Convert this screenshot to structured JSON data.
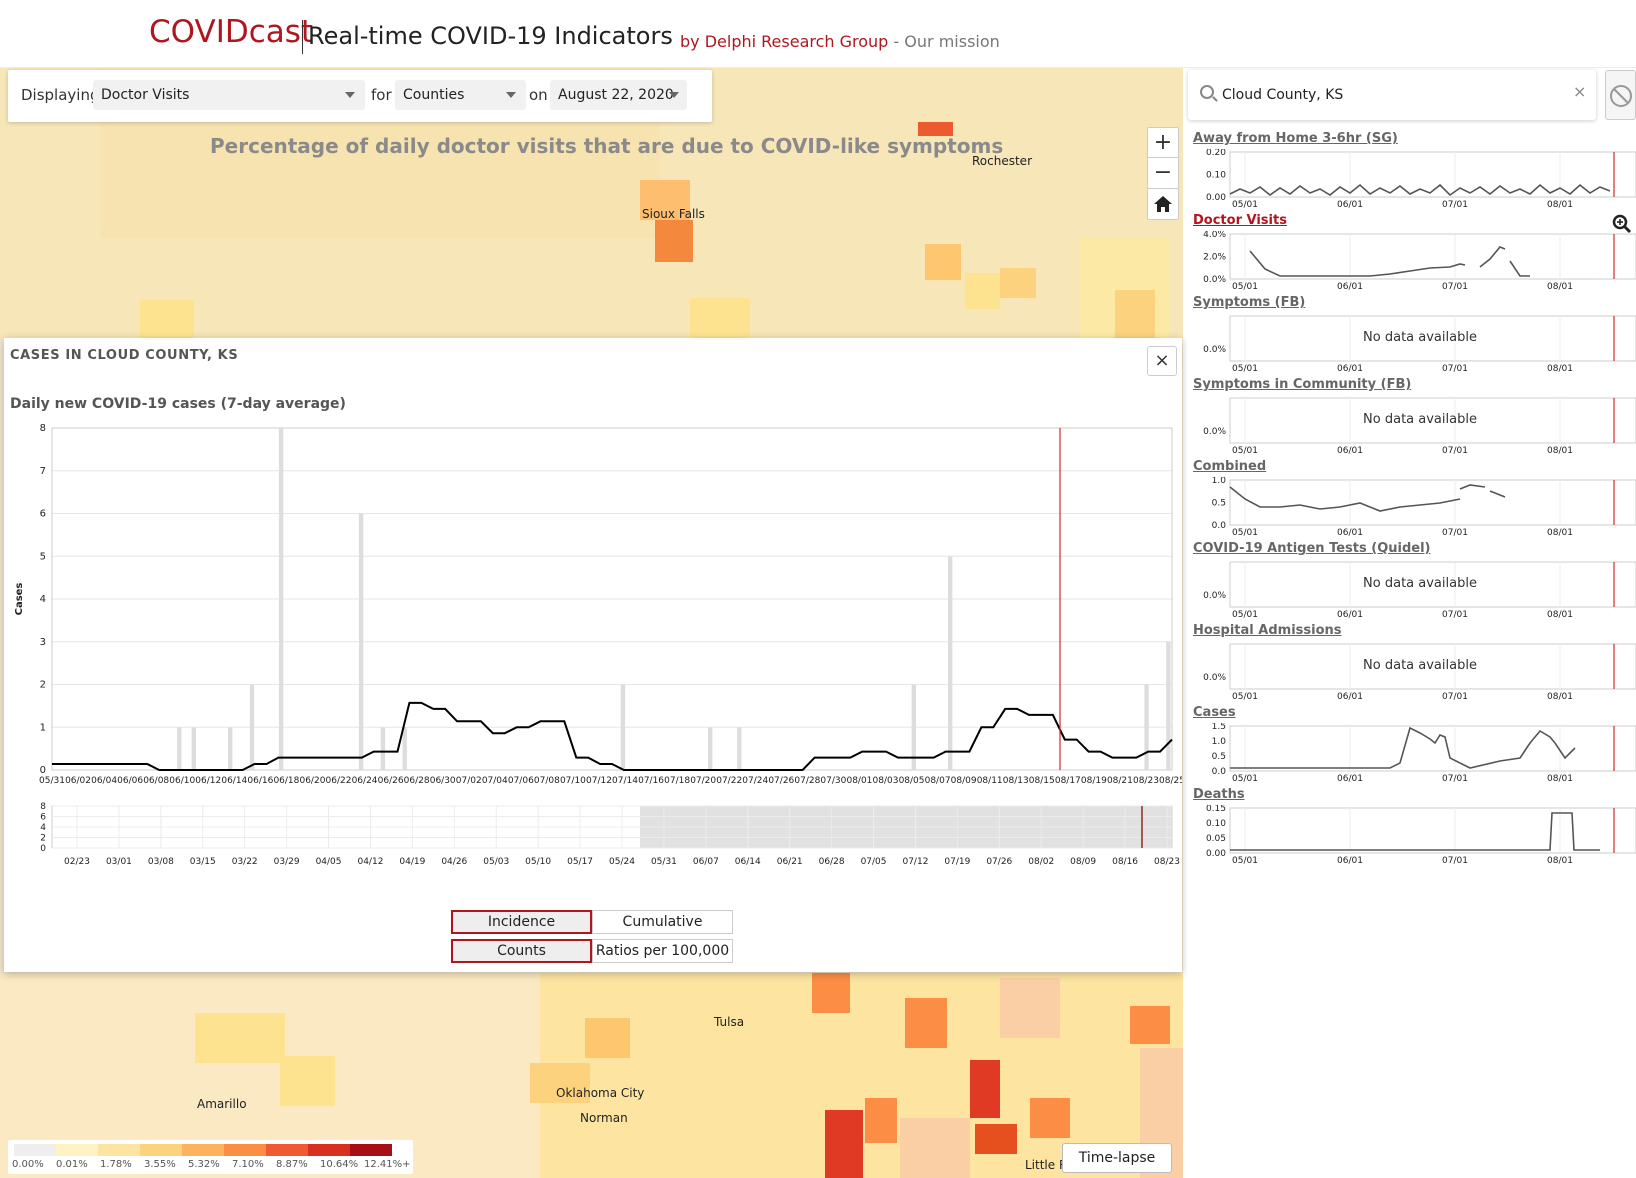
{
  "header": {
    "brand": "COVIDcast",
    "title": "Real-time COVID-19 Indicators",
    "byline_link": "by Delphi Research Group",
    "byline_sep": " - ",
    "mission_link": "Our mission"
  },
  "controls": {
    "displaying_label": "Displaying",
    "signal_value": "Doctor Visits",
    "for_label": "for",
    "level_value": "Counties",
    "on_label": "on",
    "date_value": "August 22, 2020"
  },
  "map": {
    "title": "Percentage of daily doctor visits that are due to COVID-like symptoms",
    "cities": [
      "Rochester",
      "Sioux Falls",
      "Tulsa",
      "Oklahoma City",
      "Norman",
      "Amarillo",
      "Little R"
    ],
    "legend_ticks": [
      "0.00%",
      "0.01%",
      "1.78%",
      "3.55%",
      "5.32%",
      "7.10%",
      "8.87%",
      "10.64%",
      "12.41%+"
    ],
    "legend_colors": [
      "#eeeeee",
      "#fff3c4",
      "#fde4a0",
      "#fdd27e",
      "#fdb35e",
      "#fc8d45",
      "#f05a32",
      "#d7301f",
      "#a50f15"
    ],
    "timelapse_label": "Time-lapse",
    "zoom_in": "+",
    "zoom_out": "−"
  },
  "panel": {
    "title": "CASES IN CLOUD COUNTY, KS",
    "close": "×",
    "chart_title": "Daily new COVID-19 cases (7-day average)",
    "toggle_incidence": "Incidence",
    "toggle_cumulative": "Cumulative",
    "toggle_counts": "Counts",
    "toggle_ratios": "Ratios per 100,000"
  },
  "chart_data": {
    "type": "bar",
    "ylabel": "Cases",
    "ylim": [
      0,
      8
    ],
    "yticks": [
      0,
      1,
      2,
      3,
      4,
      5,
      6,
      7,
      8
    ],
    "x_start": "05/31",
    "x_end": "08/27",
    "x_tick_labels": [
      "05/31",
      "06/02",
      "06/04",
      "06/06",
      "06/08",
      "06/10",
      "06/12",
      "06/14",
      "06/16",
      "06/18",
      "06/20",
      "06/22",
      "06/24",
      "06/26",
      "06/28",
      "06/30",
      "07/02",
      "07/04",
      "07/06",
      "07/08",
      "07/10",
      "07/12",
      "07/14",
      "07/16",
      "07/18",
      "07/20",
      "07/22",
      "07/24",
      "07/26",
      "07/28",
      "07/30",
      "08/01",
      "08/03",
      "08/05",
      "08/07",
      "08/09",
      "08/11",
      "08/13",
      "08/15",
      "08/17",
      "08/19",
      "08/21",
      "08/23",
      "08/25"
    ],
    "selected_date": "08/22",
    "daily_bars": [
      0,
      0,
      0,
      0,
      0,
      0,
      0,
      0,
      0,
      0,
      0,
      0,
      0,
      0,
      0,
      0,
      0,
      1,
      0,
      1,
      0,
      0,
      0,
      0,
      1,
      0,
      0,
      2,
      0,
      0,
      0,
      8,
      0,
      0,
      0,
      0,
      0,
      0,
      0,
      0,
      0,
      0,
      6,
      0,
      0,
      1,
      0,
      0,
      1,
      0,
      0,
      0,
      0,
      0,
      0,
      0,
      0,
      0,
      0,
      0,
      0,
      0,
      0,
      0,
      0,
      0,
      0,
      0,
      0,
      0,
      0,
      0,
      0,
      0,
      0,
      0,
      0,
      0,
      2,
      0,
      0,
      0,
      0,
      0,
      0,
      0,
      0,
      0,
      0,
      0,
      1,
      0,
      0,
      0,
      1,
      0,
      0,
      0,
      0,
      0,
      0,
      0,
      0,
      0,
      0,
      0,
      0,
      0,
      0,
      0,
      0,
      0,
      0,
      0,
      0,
      0,
      0,
      0,
      2,
      0,
      0,
      0,
      0,
      5,
      0,
      0,
      0,
      0,
      0,
      0,
      0,
      0,
      0,
      0,
      0,
      0,
      0,
      0,
      0,
      0,
      0,
      0,
      0,
      0,
      0,
      0,
      0,
      0,
      0,
      0,
      2,
      0,
      0,
      3
    ],
    "avg_line": [
      0.14,
      0.14,
      0.14,
      0.14,
      0.14,
      0.14,
      0.14,
      0.14,
      0.14,
      0,
      0,
      0,
      0,
      0,
      0,
      0,
      0,
      0.14,
      0.14,
      0.29,
      0.29,
      0.29,
      0.29,
      0.29,
      0.29,
      0.29,
      0.29,
      0.43,
      0.43,
      0.43,
      1.57,
      1.57,
      1.43,
      1.43,
      1.14,
      1.14,
      1.14,
      0.86,
      0.86,
      1.0,
      1.0,
      1.14,
      1.14,
      1.14,
      0.29,
      0.29,
      0.14,
      0.14,
      0,
      0,
      0,
      0,
      0,
      0,
      0,
      0,
      0,
      0,
      0,
      0,
      0,
      0,
      0,
      0,
      0.29,
      0.29,
      0.29,
      0.29,
      0.43,
      0.43,
      0.43,
      0.29,
      0.29,
      0.29,
      0.29,
      0.43,
      0.43,
      0.43,
      1.0,
      1.0,
      1.43,
      1.43,
      1.29,
      1.29,
      1.29,
      0.71,
      0.71,
      0.43,
      0.43,
      0.29,
      0.29,
      0.29,
      0.43,
      0.43,
      0.71
    ],
    "overview_ticks": [
      "02/23",
      "03/01",
      "03/08",
      "03/15",
      "03/22",
      "03/29",
      "04/05",
      "04/12",
      "04/19",
      "04/26",
      "05/03",
      "05/10",
      "05/17",
      "05/24",
      "05/31",
      "06/07",
      "06/14",
      "06/21",
      "06/28",
      "07/05",
      "07/12",
      "07/19",
      "07/26",
      "08/02",
      "08/09",
      "08/16",
      "08/23"
    ],
    "overview_yticks": [
      0,
      2,
      4,
      6,
      8
    ]
  },
  "search": {
    "value": "Cloud County, KS",
    "clear": "×"
  },
  "signals": [
    {
      "title": "Away from Home 3-6hr (SG)",
      "yticks": [
        "0.20",
        "0.10",
        "0.00"
      ],
      "has_data": true,
      "active": false
    },
    {
      "title": "Doctor Visits",
      "yticks": [
        "4.0%",
        "2.0%",
        "0.0%"
      ],
      "has_data": true,
      "active": true
    },
    {
      "title": "Symptoms (FB)",
      "yticks": [
        "0.0%"
      ],
      "has_data": false,
      "active": false
    },
    {
      "title": "Symptoms in Community (FB)",
      "yticks": [
        "0.0%"
      ],
      "has_data": false,
      "active": false
    },
    {
      "title": "Combined",
      "yticks": [
        "1.0",
        "0.5",
        "0.0"
      ],
      "has_data": true,
      "active": false
    },
    {
      "title": "COVID-19 Antigen Tests (Quidel)",
      "yticks": [
        "0.0%"
      ],
      "has_data": false,
      "active": false
    },
    {
      "title": "Hospital Admissions",
      "yticks": [
        "0.0%"
      ],
      "has_data": false,
      "active": false
    },
    {
      "title": "Cases",
      "yticks": [
        "1.5",
        "1.0",
        "0.5",
        "0.0"
      ],
      "has_data": true,
      "active": false
    },
    {
      "title": "Deaths",
      "yticks": [
        "0.15",
        "0.10",
        "0.05",
        "0.00"
      ],
      "has_data": true,
      "active": false
    }
  ],
  "signal_xticks": [
    "05/01",
    "06/01",
    "07/01",
    "08/01"
  ],
  "no_data_text": "No data available",
  "colors": {
    "brand": "#b0161e",
    "line": "#000000",
    "bar": "#dddddd",
    "marker": "#d62728"
  }
}
